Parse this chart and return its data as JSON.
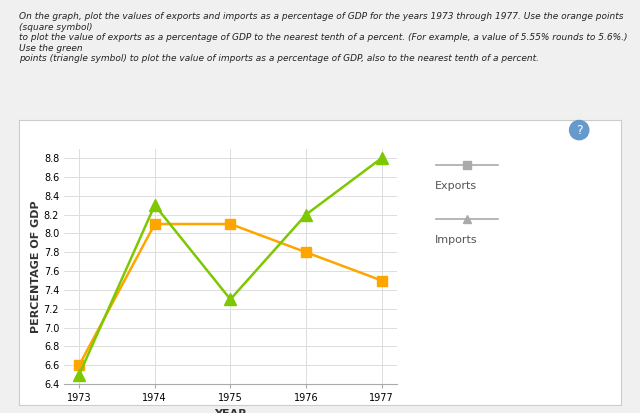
{
  "years": [
    1973,
    1974,
    1975,
    1976,
    1977
  ],
  "exports": [
    6.6,
    8.1,
    8.1,
    7.8,
    7.5
  ],
  "imports": [
    6.5,
    8.3,
    7.3,
    8.2,
    8.8
  ],
  "exports_color": "#FFA500",
  "imports_color": "#7DC800",
  "xlabel": "YEAR",
  "ylabel": "PERCENTAGE OF GDP",
  "ylim": [
    6.4,
    8.9
  ],
  "yticks": [
    6.4,
    6.6,
    6.8,
    7.0,
    7.2,
    7.4,
    7.6,
    7.8,
    8.0,
    8.2,
    8.4,
    8.6,
    8.8
  ],
  "xticks": [
    1973,
    1974,
    1975,
    1976,
    1977
  ],
  "legend_exports_label": "Exports",
  "legend_imports_label": "Imports",
  "legend_marker_color": "#aaaaaa",
  "legend_text_color": "#555555",
  "instruction_text": "On the graph, plot the values of exports and imports as a percentage of GDP for the years 1973 through 1977. Use the orange points (square symbol)\nto plot the value of exports as a percentage of GDP to the nearest tenth of a percent. (For example, a value of 5.55% rounds to 5.6%.) Use the green\npoints (triangle symbol) to plot the value of imports as a percentage of GDP, also to the nearest tenth of a percent.",
  "background_color": "#f0f0f0",
  "card_color": "#ffffff",
  "plot_bg_color": "#ffffff",
  "grid_color": "#dddddd",
  "axis_color": "#aaaaaa",
  "question_circle_color": "#6699cc",
  "tick_label_fontsize": 7,
  "axis_label_fontsize": 8
}
